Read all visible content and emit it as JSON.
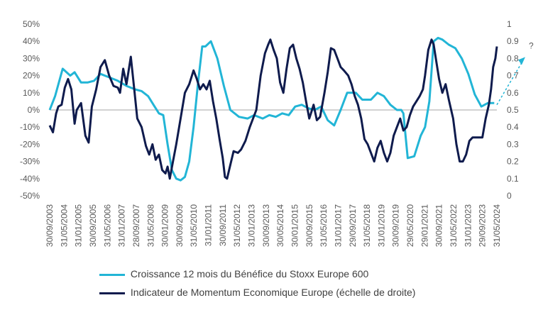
{
  "chart_data": {
    "type": "line",
    "title": "",
    "annotation": "?",
    "colors": {
      "earnings": "#22b5d6",
      "momentum": "#0f1b4d",
      "zero_line": "#a6a6a6"
    },
    "left_axis": {
      "range": [
        -50,
        50
      ],
      "ticks": [
        "50%",
        "40%",
        "30%",
        "20%",
        "10%",
        "0%",
        "-10%",
        "-20%",
        "-30%",
        "-40%",
        "-50%"
      ]
    },
    "right_axis": {
      "range": [
        0,
        1
      ],
      "ticks": [
        "1",
        "0.9",
        "0.8",
        "0.7",
        "0.6",
        "0.5",
        "0.4",
        "0.3",
        "0.2",
        "0.1",
        "0"
      ]
    },
    "x_range": [
      2003.75,
      2024.42
    ],
    "x_ticks": [
      "30/09/2003",
      "31/05/2004",
      "31/01/2005",
      "30/09/2005",
      "31/05/2006",
      "31/01/2007",
      "28/09/2007",
      "31/05/2008",
      "30/01/2009",
      "30/09/2009",
      "31/05/2010",
      "31/01/2011",
      "30/09/2011",
      "31/05/2012",
      "31/01/2013",
      "30/09/2013",
      "30/05/2014",
      "30/01/2015",
      "30/09/2015",
      "31/05/2016",
      "31/01/2017",
      "29/09/2017",
      "31/05/2018",
      "31/01/2019",
      "30/09/2019",
      "29/05/2020",
      "29/01/2021",
      "30/09/2021",
      "31/05/2022",
      "31/01/2023",
      "29/09/2023",
      "31/05/2024"
    ],
    "series": [
      {
        "name": "Croissance 12 mois du Bénéfice du Stoxx Europe 600",
        "axis": "left",
        "x": [
          2003.75,
          2004.0,
          2004.35,
          2004.7,
          2004.9,
          2005.2,
          2005.5,
          2005.8,
          2006.1,
          2006.5,
          2006.9,
          2007.3,
          2007.7,
          2008.0,
          2008.3,
          2008.6,
          2008.8,
          2009.0,
          2009.2,
          2009.4,
          2009.6,
          2009.8,
          2010.0,
          2010.2,
          2010.4,
          2010.6,
          2010.8,
          2010.95,
          2011.2,
          2011.5,
          2011.8,
          2012.1,
          2012.5,
          2012.9,
          2013.2,
          2013.6,
          2013.9,
          2014.2,
          2014.5,
          2014.8,
          2015.1,
          2015.4,
          2015.7,
          2016.0,
          2016.3,
          2016.6,
          2016.9,
          2017.2,
          2017.5,
          2017.9,
          2018.2,
          2018.6,
          2018.9,
          2019.2,
          2019.5,
          2019.8,
          2020.0,
          2020.1,
          2020.3,
          2020.6,
          2020.9,
          2021.1,
          2021.3,
          2021.5,
          2021.7,
          2021.9,
          2022.2,
          2022.5,
          2022.8,
          2023.1,
          2023.4,
          2023.7,
          2024.0,
          2024.3
        ],
        "values": [
          0,
          8,
          24,
          20,
          22,
          16,
          16,
          17,
          21,
          19,
          17,
          14,
          12,
          11,
          8,
          2,
          -2,
          -3,
          -20,
          -35,
          -40,
          -41,
          -39,
          -30,
          -10,
          15,
          37,
          37,
          40,
          30,
          14,
          0,
          -4,
          -5,
          -3,
          -5,
          -3,
          -4,
          -2,
          -3,
          2,
          3,
          1,
          0,
          2,
          -6,
          -9,
          0,
          10,
          10,
          6,
          6,
          10,
          8,
          3,
          0,
          0,
          -2,
          -28,
          -27,
          -15,
          -10,
          5,
          40,
          42,
          41,
          38,
          36,
          30,
          21,
          9,
          2,
          4,
          4
        ]
      },
      {
        "name": "Indicateur de Momentum Economique Europe (échelle de droite)",
        "axis": "right",
        "x": [
          2003.75,
          2003.9,
          2004.05,
          2004.15,
          2004.3,
          2004.45,
          2004.6,
          2004.75,
          2004.9,
          2005.0,
          2005.2,
          2005.4,
          2005.55,
          2005.7,
          2005.9,
          2006.1,
          2006.3,
          2006.5,
          2006.7,
          2006.9,
          2007.0,
          2007.15,
          2007.3,
          2007.5,
          2007.65,
          2007.8,
          2008.0,
          2008.2,
          2008.35,
          2008.5,
          2008.65,
          2008.8,
          2008.95,
          2009.1,
          2009.2,
          2009.3,
          2009.45,
          2009.6,
          2009.8,
          2010.0,
          2010.2,
          2010.4,
          2010.55,
          2010.7,
          2010.85,
          2011.0,
          2011.15,
          2011.3,
          2011.45,
          2011.6,
          2011.75,
          2011.85,
          2011.95,
          2012.1,
          2012.25,
          2012.45,
          2012.6,
          2012.8,
          2013.0,
          2013.15,
          2013.3,
          2013.5,
          2013.7,
          2013.85,
          2013.95,
          2014.1,
          2014.25,
          2014.4,
          2014.55,
          2014.7,
          2014.85,
          2015.0,
          2015.15,
          2015.3,
          2015.45,
          2015.6,
          2015.75,
          2015.85,
          2015.95,
          2016.1,
          2016.25,
          2016.45,
          2016.6,
          2016.75,
          2016.9,
          2017.05,
          2017.2,
          2017.35,
          2017.55,
          2017.7,
          2017.85,
          2018.0,
          2018.15,
          2018.3,
          2018.45,
          2018.6,
          2018.75,
          2018.9,
          2019.05,
          2019.2,
          2019.35,
          2019.5,
          2019.65,
          2019.8,
          2019.95,
          2020.1,
          2020.25,
          2020.4,
          2020.55,
          2020.7,
          2020.85,
          2021.0,
          2021.1,
          2021.25,
          2021.4,
          2021.5,
          2021.6,
          2021.75,
          2021.9,
          2022.05,
          2022.2,
          2022.4,
          2022.55,
          2022.7,
          2022.85,
          2023.0,
          2023.15,
          2023.3,
          2023.45,
          2023.6,
          2023.75,
          2023.9,
          2024.05,
          2024.15,
          2024.25,
          2024.35,
          2024.42
        ],
        "values": [
          0.41,
          0.37,
          0.48,
          0.52,
          0.53,
          0.63,
          0.68,
          0.62,
          0.42,
          0.5,
          0.54,
          0.35,
          0.31,
          0.52,
          0.62,
          0.75,
          0.79,
          0.7,
          0.64,
          0.63,
          0.6,
          0.74,
          0.65,
          0.81,
          0.63,
          0.45,
          0.4,
          0.29,
          0.24,
          0.3,
          0.21,
          0.24,
          0.15,
          0.13,
          0.17,
          0.1,
          0.2,
          0.3,
          0.45,
          0.6,
          0.65,
          0.73,
          0.68,
          0.62,
          0.65,
          0.62,
          0.67,
          0.55,
          0.45,
          0.33,
          0.22,
          0.11,
          0.1,
          0.18,
          0.26,
          0.25,
          0.27,
          0.32,
          0.4,
          0.45,
          0.5,
          0.7,
          0.83,
          0.88,
          0.91,
          0.85,
          0.8,
          0.66,
          0.6,
          0.74,
          0.86,
          0.88,
          0.8,
          0.74,
          0.66,
          0.55,
          0.45,
          0.49,
          0.53,
          0.44,
          0.46,
          0.6,
          0.72,
          0.86,
          0.85,
          0.8,
          0.75,
          0.73,
          0.7,
          0.65,
          0.58,
          0.53,
          0.45,
          0.33,
          0.3,
          0.25,
          0.2,
          0.28,
          0.32,
          0.25,
          0.2,
          0.25,
          0.35,
          0.4,
          0.45,
          0.38,
          0.4,
          0.47,
          0.52,
          0.55,
          0.58,
          0.62,
          0.7,
          0.85,
          0.91,
          0.88,
          0.8,
          0.68,
          0.6,
          0.65,
          0.56,
          0.45,
          0.3,
          0.2,
          0.2,
          0.24,
          0.32,
          0.34,
          0.34,
          0.34,
          0.34,
          0.45,
          0.53,
          0.62,
          0.75,
          0.8,
          0.87
        ]
      }
    ],
    "forecast_segment": {
      "from_x": 2024.42,
      "from_value": 3,
      "to_value_right": 0.8
    }
  },
  "legend": {
    "earnings_label": "Croissance 12 mois du Bénéfice du Stoxx Europe 600",
    "momentum_label": "Indicateur de Momentum Economique Europe (échelle de droite)"
  }
}
